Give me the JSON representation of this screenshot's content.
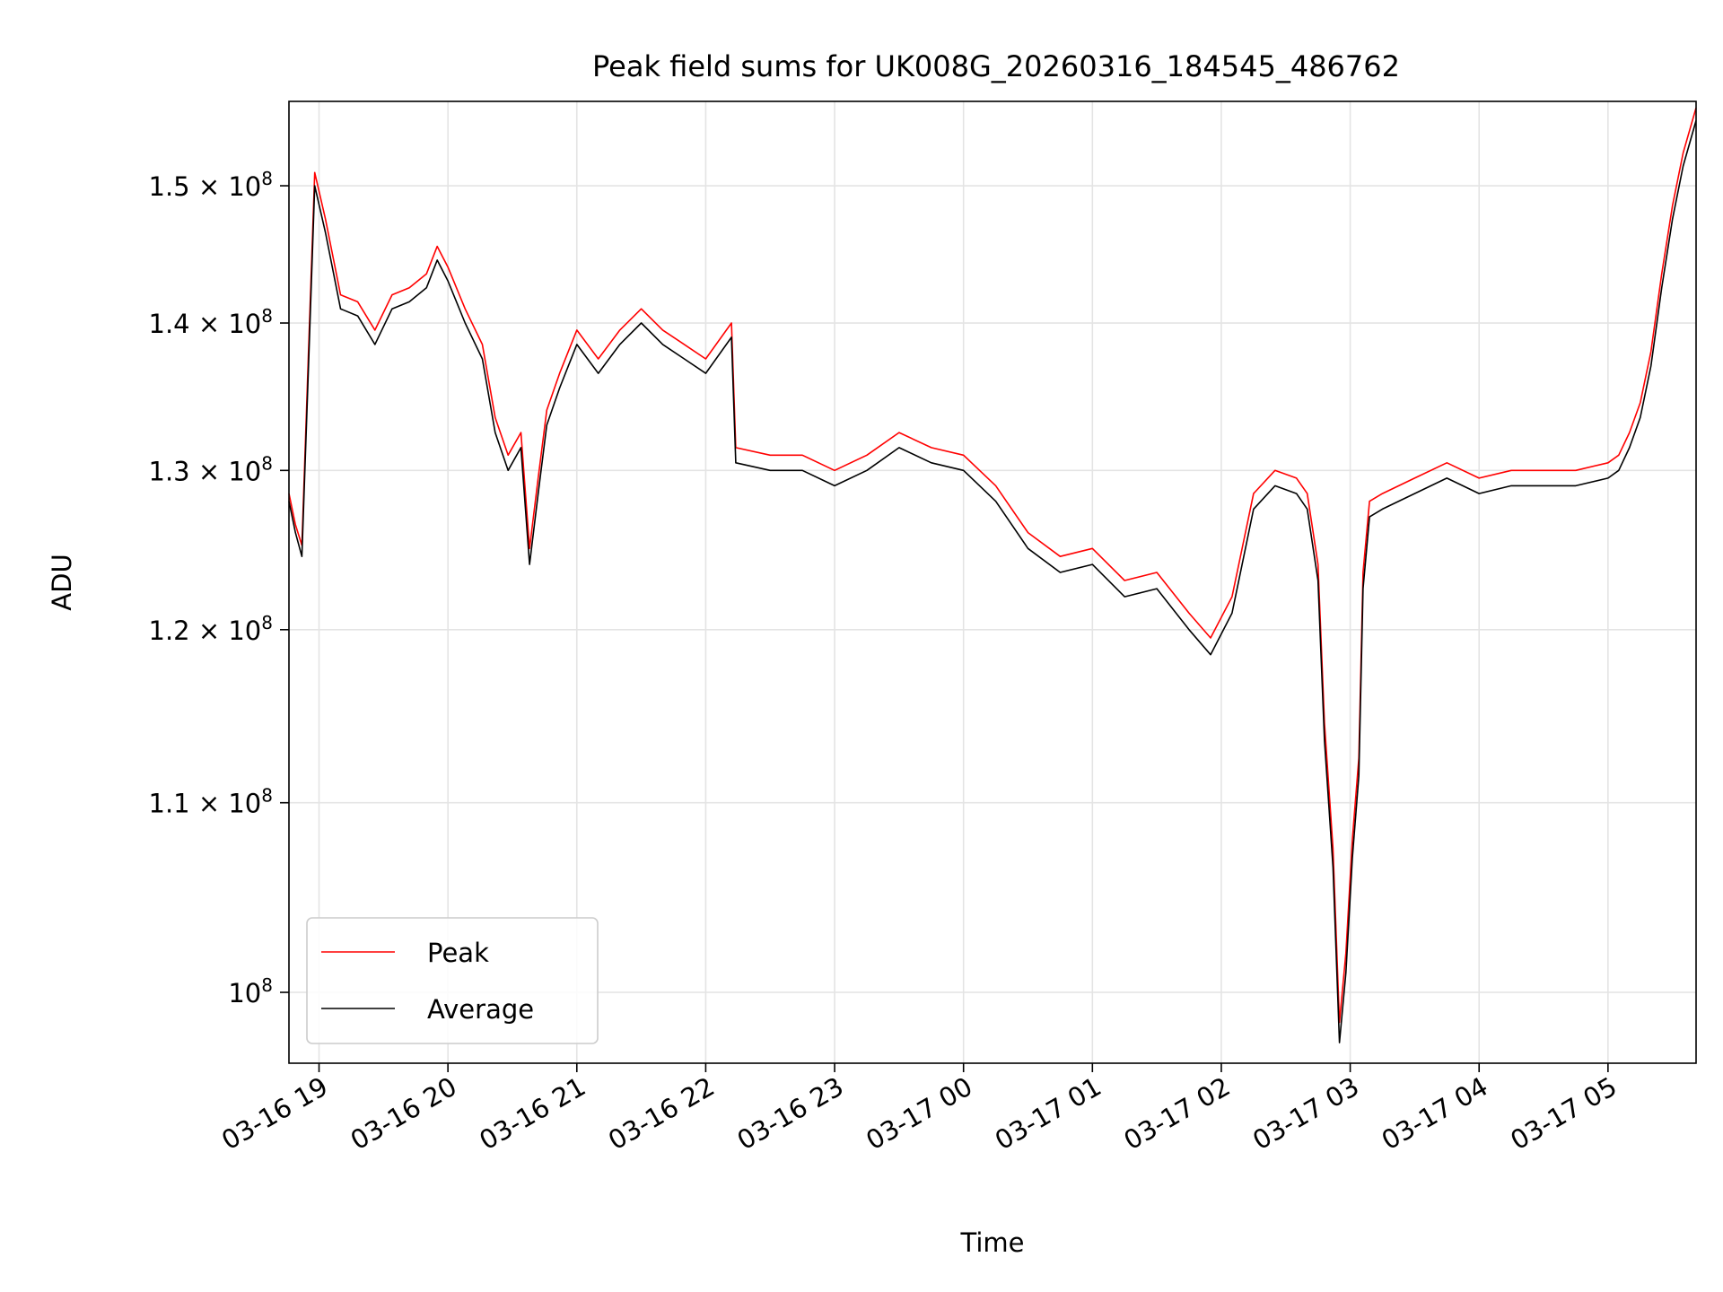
{
  "chart_data": {
    "type": "line",
    "title": "Peak field sums for UK008G_20260316_184545_486762",
    "xlabel": "Time",
    "ylabel": "ADU",
    "y_scale": "log",
    "ylim": [
      96500000,
      156500000
    ],
    "xlim": [
      "03-16 18:46",
      "03-17 05:41"
    ],
    "grid": true,
    "legend_position": "lower-left",
    "x_ticks": [
      "03-16 19",
      "03-16 20",
      "03-16 21",
      "03-16 22",
      "03-16 23",
      "03-17 00",
      "03-17 01",
      "03-17 02",
      "03-17 03",
      "03-17 04",
      "03-17 05"
    ],
    "y_ticks": [
      {
        "value": 100000000,
        "mantissa": "",
        "exponent": "8"
      },
      {
        "value": 110000000,
        "mantissa": "1.1",
        "exponent": "8"
      },
      {
        "value": 120000000,
        "mantissa": "1.2",
        "exponent": "8"
      },
      {
        "value": 130000000,
        "mantissa": "1.3",
        "exponent": "8"
      },
      {
        "value": 140000000,
        "mantissa": "1.4",
        "exponent": "8"
      },
      {
        "value": 150000000,
        "mantissa": "1.5",
        "exponent": "8"
      }
    ],
    "x": [
      "03-16 18:46",
      "03-16 18:49",
      "03-16 18:52",
      "03-16 18:55",
      "03-16 18:58",
      "03-16 19:03",
      "03-16 19:10",
      "03-16 19:18",
      "03-16 19:26",
      "03-16 19:34",
      "03-16 19:42",
      "03-16 19:50",
      "03-16 19:55",
      "03-16 20:00",
      "03-16 20:08",
      "03-16 20:16",
      "03-16 20:22",
      "03-16 20:28",
      "03-16 20:34",
      "03-16 20:38",
      "03-16 20:42",
      "03-16 20:46",
      "03-16 20:52",
      "03-16 21:00",
      "03-16 21:10",
      "03-16 21:20",
      "03-16 21:30",
      "03-16 21:40",
      "03-16 21:50",
      "03-16 22:00",
      "03-16 22:12",
      "03-16 22:14",
      "03-16 22:30",
      "03-16 22:45",
      "03-16 23:00",
      "03-16 23:15",
      "03-16 23:30",
      "03-16 23:45",
      "03-17 00:00",
      "03-17 00:15",
      "03-17 00:30",
      "03-17 00:45",
      "03-17 01:00",
      "03-17 01:15",
      "03-17 01:30",
      "03-17 01:45",
      "03-17 01:55",
      "03-17 02:05",
      "03-17 02:15",
      "03-17 02:25",
      "03-17 02:35",
      "03-17 02:40",
      "03-17 02:45",
      "03-17 02:48",
      "03-17 02:52",
      "03-17 02:55",
      "03-17 02:58",
      "03-17 03:01",
      "03-17 03:04",
      "03-17 03:06",
      "03-17 03:09",
      "03-17 03:15",
      "03-17 03:30",
      "03-17 03:45",
      "03-17 04:00",
      "03-17 04:15",
      "03-17 04:30",
      "03-17 04:45",
      "03-17 05:00",
      "03-17 05:05",
      "03-17 05:10",
      "03-17 05:15",
      "03-17 05:20",
      "03-17 05:25",
      "03-17 05:30",
      "03-17 05:35",
      "03-17 05:41"
    ],
    "series": [
      {
        "name": "Peak",
        "color": "#ff0000",
        "values": [
          128500000,
          126500000,
          125200000,
          137500000,
          151000000,
          147500000,
          142000000,
          141500000,
          139500000,
          142000000,
          142500000,
          143500000,
          145500000,
          144000000,
          141000000,
          138500000,
          133500000,
          131000000,
          132500000,
          125000000,
          129500000,
          134000000,
          136500000,
          139500000,
          137500000,
          139500000,
          141000000,
          139500000,
          138500000,
          137500000,
          140000000,
          131500000,
          131000000,
          131000000,
          130000000,
          131000000,
          132500000,
          131500000,
          131000000,
          129000000,
          126000000,
          124500000,
          125000000,
          123000000,
          123500000,
          121000000,
          119500000,
          122000000,
          128500000,
          130000000,
          129500000,
          128500000,
          124000000,
          114500000,
          107500000,
          98500000,
          102000000,
          108000000,
          112500000,
          123500000,
          128000000,
          128500000,
          129500000,
          130500000,
          129500000,
          130000000,
          130000000,
          130000000,
          130500000,
          131000000,
          132500000,
          134500000,
          138000000,
          143500000,
          148500000,
          152500000,
          156000000
        ]
      },
      {
        "name": "Average",
        "color": "#000000",
        "values": [
          128000000,
          126000000,
          124500000,
          136500000,
          150000000,
          146500000,
          141000000,
          140500000,
          138500000,
          141000000,
          141500000,
          142500000,
          144500000,
          143000000,
          140000000,
          137500000,
          132500000,
          130000000,
          131500000,
          124000000,
          128500000,
          133000000,
          135500000,
          138500000,
          136500000,
          138500000,
          140000000,
          138500000,
          137500000,
          136500000,
          139000000,
          130500000,
          130000000,
          130000000,
          129000000,
          130000000,
          131500000,
          130500000,
          130000000,
          128000000,
          125000000,
          123500000,
          124000000,
          122000000,
          122500000,
          120000000,
          118500000,
          121000000,
          127500000,
          129000000,
          128500000,
          127500000,
          123000000,
          113500000,
          106500000,
          97500000,
          101000000,
          107000000,
          111500000,
          122500000,
          127000000,
          127500000,
          128500000,
          129500000,
          128500000,
          129000000,
          129000000,
          129000000,
          129500000,
          130000000,
          131500000,
          133500000,
          137000000,
          142500000,
          147500000,
          151500000,
          155000000
        ]
      }
    ]
  }
}
